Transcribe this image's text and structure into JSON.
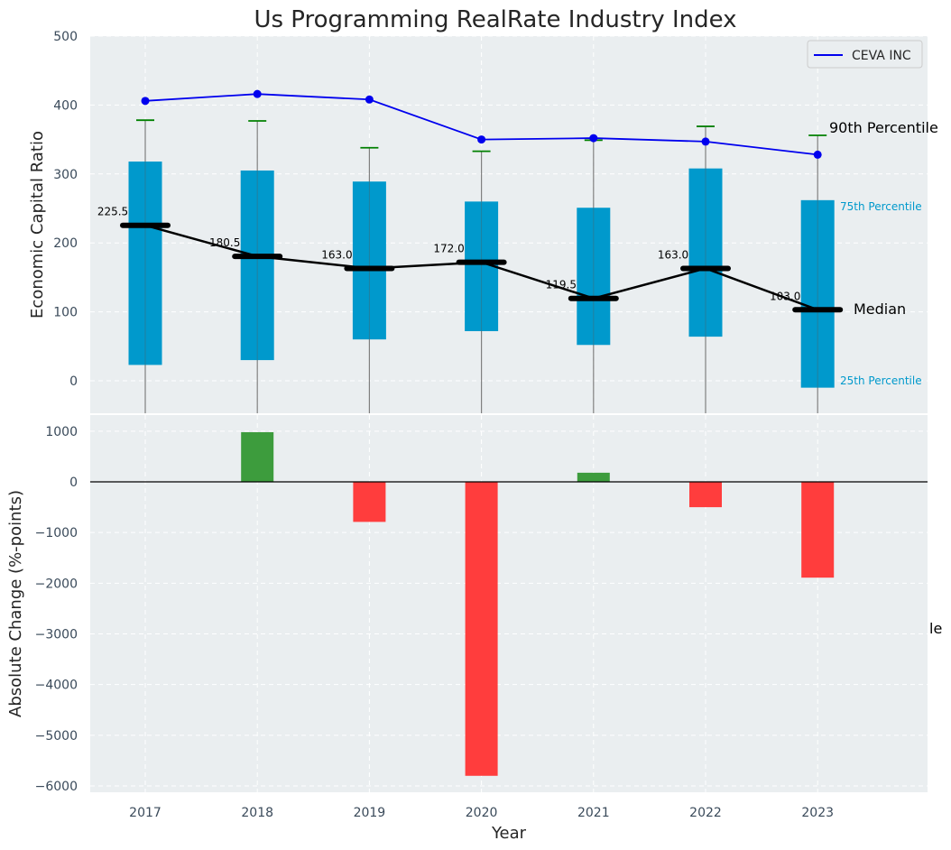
{
  "chart_data": [
    {
      "type": "box",
      "title": "Us Programming RealRate Industry Index",
      "ylabel": "Economic Capital Ratio",
      "ylim": [
        -50,
        500
      ],
      "yticks": [
        0,
        100,
        200,
        300,
        400,
        500
      ],
      "categories": [
        "2017",
        "2018",
        "2019",
        "2020",
        "2021",
        "2022",
        "2023"
      ],
      "grid": true,
      "legend": {
        "position": "top-right",
        "entries": [
          "CEVA INC"
        ]
      },
      "percentile_25": [
        23,
        30,
        60,
        72,
        52,
        64,
        -10
      ],
      "percentile_75": [
        318,
        305,
        289,
        260,
        251,
        308,
        262
      ],
      "percentile_90": [
        378,
        377,
        338,
        333,
        349,
        369,
        356
      ],
      "median": [
        225.5,
        180.5,
        163.0,
        172.0,
        119.5,
        163.0,
        103.0
      ],
      "median_labels": [
        "225.5",
        "180.5",
        "163.0",
        "172.0",
        "119.5",
        "163.0",
        "103.0"
      ],
      "series": [
        {
          "name": "CEVA INC",
          "values": [
            406,
            416,
            408,
            350,
            352,
            347,
            328
          ]
        }
      ],
      "annotations": {
        "p90": "90th Percentile",
        "p75": "75th Percentile",
        "median": "Median",
        "p25": "25th Percentile"
      },
      "colors": {
        "box": "#0099cc",
        "median": "#000000",
        "ceva": "#0000ee",
        "p90_cap": "#008000",
        "whisker": "#808080",
        "background": "#eaeef0"
      }
    },
    {
      "type": "bar",
      "ylabel": "Absolute Change (%-points)",
      "xlabel": "Year",
      "ylim": [
        -6100,
        1350
      ],
      "yticks": [
        1000,
        0,
        -1000,
        -2000,
        -3000,
        -4000,
        -5000,
        -6000
      ],
      "ytick_labels": [
        "1000",
        "0",
        "−1000",
        "−2000",
        "−3000",
        "−4000",
        "−5000",
        "−6000"
      ],
      "categories": [
        "2017",
        "2018",
        "2019",
        "2020",
        "2021",
        "2022",
        "2023"
      ],
      "values": [
        null,
        980,
        -790,
        -5800,
        180,
        -500,
        -1890
      ],
      "grid": true,
      "clipped_text": "le",
      "colors": {
        "positive": "#3d9c3d",
        "negative": "#ff3d3d",
        "zero_line": "#000000"
      }
    }
  ]
}
